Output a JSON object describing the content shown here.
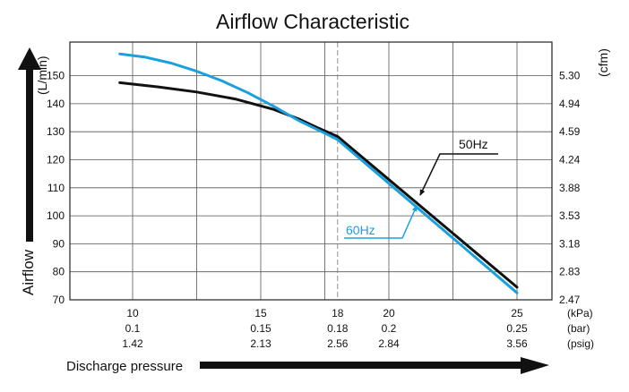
{
  "chart_data": {
    "type": "line",
    "title": "Airflow Characteristic",
    "ylabel": "Airflow",
    "y_unit_left": "(L/min)",
    "y_unit_right": "(cfm)",
    "xlabel": "Discharge pressure",
    "x_unit": "kPa",
    "ylim": [
      70,
      160
    ],
    "xlim": [
      7.5,
      26
    ],
    "y_ticks": [
      70,
      80,
      90,
      100,
      110,
      120,
      130,
      140,
      150
    ],
    "y_ticks_right": [
      "2.47",
      "2.83",
      "3.18",
      "3.53",
      "3.88",
      "4.24",
      "4.59",
      "4.94",
      "5.30"
    ],
    "x_ticks": [
      {
        "kpa": 10,
        "labels": [
          "10",
          "0.1",
          "1.42"
        ]
      },
      {
        "kpa": 15,
        "labels": [
          "15",
          "0.15",
          "2.13"
        ]
      },
      {
        "kpa": 18,
        "labels": [
          "18",
          "0.18",
          "2.56"
        ]
      },
      {
        "kpa": 20,
        "labels": [
          "20",
          "0.2",
          "2.84"
        ]
      },
      {
        "kpa": 25,
        "labels": [
          "25",
          "0.25",
          "3.56"
        ]
      }
    ],
    "x_unit_labels": [
      "(kPa)",
      "(bar)",
      "(psig)"
    ],
    "x_grid": [
      10,
      12.5,
      15,
      17.5,
      20,
      22.5,
      25
    ],
    "x_dashed_ref": 18,
    "series": [
      {
        "name": "50Hz",
        "color": "#111111",
        "x": [
          9.5,
          11,
          12.5,
          14,
          15.5,
          16.5,
          17.2,
          18,
          25
        ],
        "y": [
          147.5,
          146,
          144.2,
          141.7,
          138,
          134.5,
          131.5,
          128.3,
          74.5
        ]
      },
      {
        "name": "60Hz",
        "color": "#1aa0dc",
        "x": [
          9.5,
          10.5,
          11.5,
          12.5,
          13.5,
          14.5,
          15.5,
          16.5,
          17.5,
          18,
          25
        ],
        "y": [
          157.8,
          156.6,
          154.5,
          151.6,
          148.1,
          143.9,
          139.1,
          133.9,
          129.5,
          127.2,
          72.5
        ]
      }
    ],
    "annotations": [
      {
        "text": "50Hz",
        "series": "50Hz",
        "color": "#111111"
      },
      {
        "text": "60Hz",
        "series": "60Hz",
        "color": "#1aa0dc"
      }
    ]
  }
}
